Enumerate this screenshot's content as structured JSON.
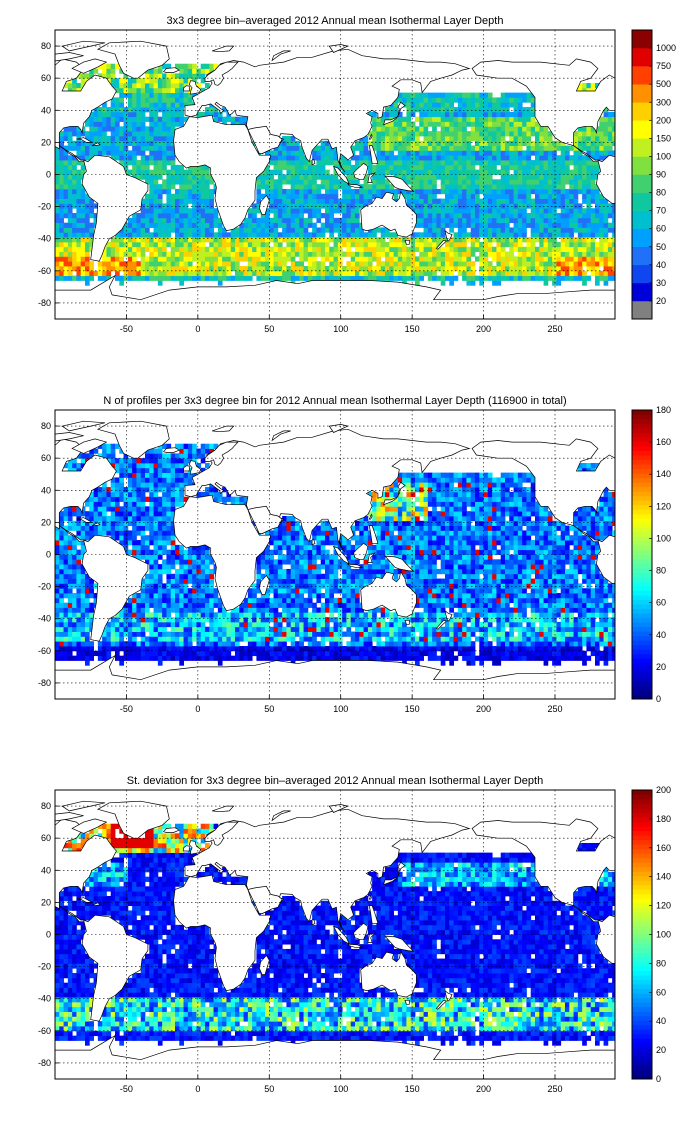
{
  "chart_data": [
    {
      "type": "heatmap",
      "title": "3x3 degree bin–averaged 2012 Annual mean Isothermal Layer Depth",
      "xticks": [
        -50,
        0,
        50,
        100,
        150,
        200,
        250
      ],
      "yticks": [
        -80,
        -60,
        -40,
        -20,
        0,
        20,
        40,
        60,
        80
      ],
      "xlim": [
        -100,
        292
      ],
      "ylim": [
        -90,
        90
      ],
      "grid": true,
      "colorbar": {
        "scale": "categorical-log",
        "ticks": [
          "20",
          "30",
          "40",
          "50",
          "60",
          "70",
          "80",
          "90",
          "100",
          "150",
          "200",
          "300",
          "500",
          "750",
          "1000"
        ],
        "colors": [
          "#808080",
          "#0000d8",
          "#1046f0",
          "#2070f8",
          "#00a0ff",
          "#00c0d0",
          "#10c8a0",
          "#40d070",
          "#80e040",
          "#c0f020",
          "#ffff00",
          "#ffd000",
          "#ff9000",
          "#ff4000",
          "#e00000",
          "#8b0000"
        ]
      },
      "field": "mean_isothermal_layer_depth"
    },
    {
      "type": "heatmap",
      "title": "N of profiles per 3x3 degree bin for 2012 Annual mean Isothermal Layer Depth  (116900 in total)",
      "xticks": [
        -50,
        0,
        50,
        100,
        150,
        200,
        250
      ],
      "yticks": [
        -80,
        -60,
        -40,
        -20,
        0,
        20,
        40,
        60,
        80
      ],
      "xlim": [
        -100,
        292
      ],
      "ylim": [
        -90,
        90
      ],
      "grid": true,
      "colorbar": {
        "scale": "linear",
        "range": [
          0,
          180
        ],
        "ticks": [
          "0",
          "20",
          "40",
          "60",
          "80",
          "100",
          "120",
          "140",
          "160",
          "180"
        ]
      },
      "field": "profile_count"
    },
    {
      "type": "heatmap",
      "title": "St. deviation for 3x3 degree bin–averaged 2012 Annual mean Isothermal Layer Depth",
      "xticks": [
        -50,
        0,
        50,
        100,
        150,
        200,
        250
      ],
      "yticks": [
        -80,
        -60,
        -40,
        -20,
        0,
        20,
        40,
        60,
        80
      ],
      "xlim": [
        -100,
        292
      ],
      "ylim": [
        -90,
        90
      ],
      "grid": true,
      "colorbar": {
        "scale": "linear",
        "range": [
          0,
          200
        ],
        "ticks": [
          "0",
          "20",
          "40",
          "60",
          "80",
          "100",
          "120",
          "140",
          "160",
          "180",
          "200"
        ]
      },
      "field": "std_deviation"
    }
  ]
}
